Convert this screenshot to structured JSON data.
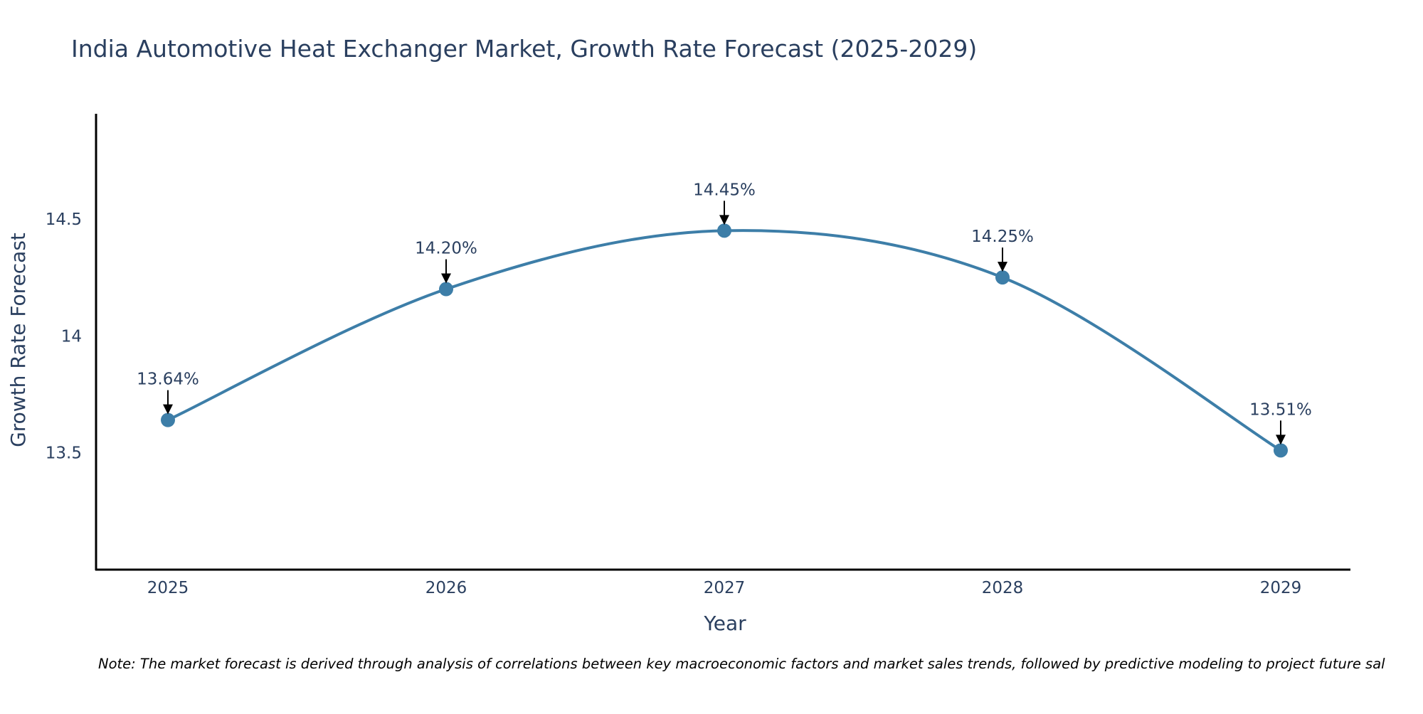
{
  "chart_data": {
    "type": "line",
    "title": "India Automotive Heat Exchanger Market, Growth Rate Forecast (2025-2029)",
    "xlabel": "Year",
    "ylabel": "Growth Rate Forecast",
    "categories": [
      "2025",
      "2026",
      "2027",
      "2028",
      "2029"
    ],
    "series": [
      {
        "name": "Growth Rate Forecast",
        "values": [
          13.64,
          14.2,
          14.45,
          14.25,
          13.51
        ],
        "labels": [
          "13.64%",
          "14.20%",
          "14.45%",
          "14.25%",
          "13.51%"
        ]
      }
    ],
    "ylim": [
      13.0,
      14.95
    ],
    "yticks": [
      13.5,
      14,
      14.5
    ],
    "ytick_labels": [
      "13.5",
      "14",
      "14.5"
    ],
    "line_shape": "spline",
    "grid": false,
    "line_color": "#3d7ea8",
    "marker_color": "#3d7ea8",
    "text_color": "#2a3f5f",
    "axis_color": "#000000",
    "note": "Note: The market forecast is derived through analysis of correlations between key macroeconomic factors and market sales trends, followed by predictive modeling to project future sal"
  }
}
